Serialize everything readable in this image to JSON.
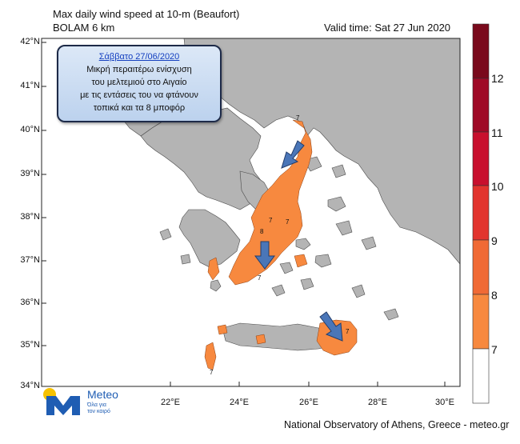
{
  "header": {
    "title": "Max daily wind speed at 10-m (Beaufort)",
    "model": "BOLAM 6 km",
    "valid_time": "Valid time: Sat 27 Jun 2020"
  },
  "axes": {
    "lat_labels": [
      "42°N",
      "41°N",
      "40°N",
      "39°N",
      "38°N",
      "37°N",
      "36°N",
      "35°N",
      "34°N"
    ],
    "lon_labels": [
      "22°E",
      "24°E",
      "26°E",
      "28°E",
      "30°E"
    ]
  },
  "colorbar": {
    "labels": [
      "12",
      "11",
      "10",
      "9",
      "8",
      "7"
    ],
    "colors": [
      "#7a0a1c",
      "#9f0a26",
      "#c8102e",
      "#e2342e",
      "#f06a35",
      "#f7893f",
      "#ffffff"
    ]
  },
  "annotation": {
    "date": "Σάββατο 27/06/2020",
    "line1": "Μικρή περαιτέρω ενίσχυση",
    "line2": "του μελτεμιού  στο Αιγαίο",
    "line3": "με τις εντάσεις του να φτάνουν",
    "line4": "τοπικά και τα 8 μποφόρ"
  },
  "map_labels": {
    "b7": "7",
    "b8": "8"
  },
  "colors": {
    "land": "#b4b4b4",
    "sea": "#ffffff",
    "wind7": "#f7893f",
    "arrow": "#4a76b8",
    "box_border": "#1d2a48"
  },
  "logo": {
    "brand": "Meteo",
    "tagline1": "Όλα για",
    "tagline2": "τον καιρό"
  },
  "footer": "National Observatory of Athens, Greece - meteo.gr"
}
